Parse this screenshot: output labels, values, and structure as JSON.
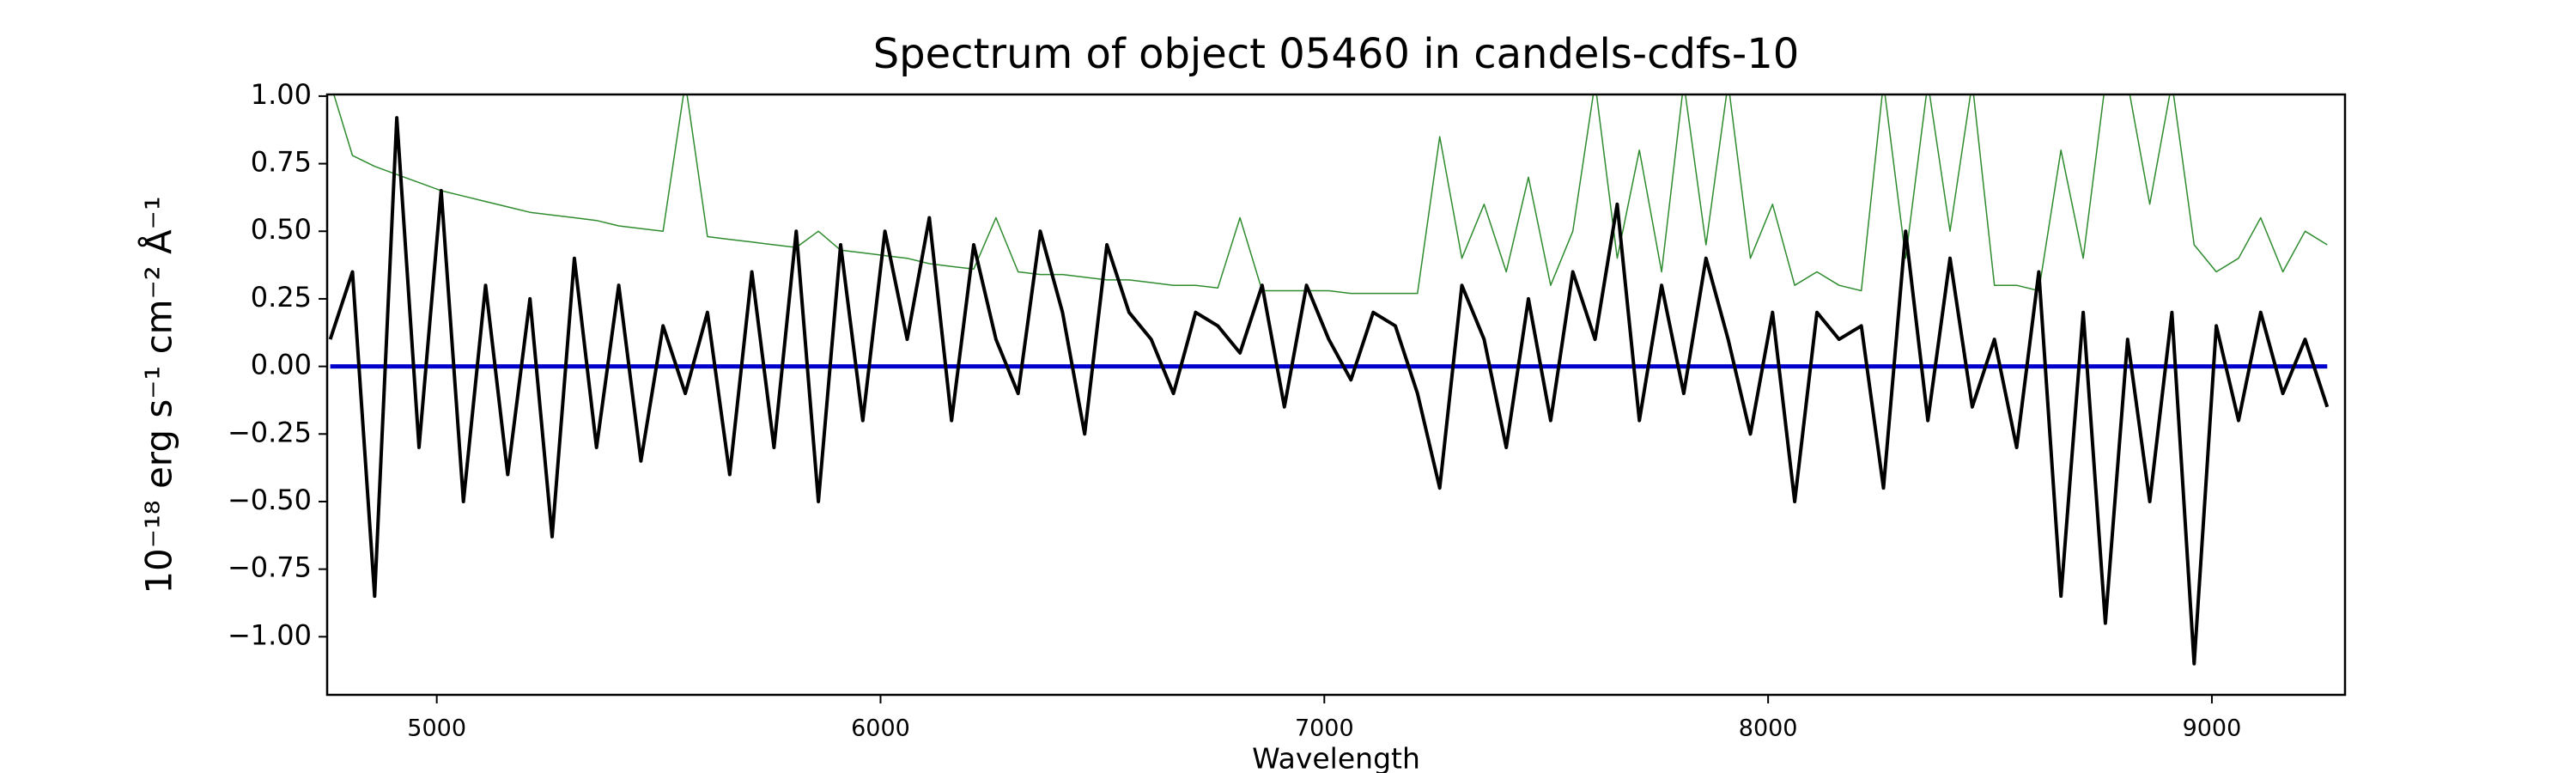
{
  "chart_data": {
    "type": "line",
    "title": "Spectrum of object 05460 in candels-cdfs-10",
    "xlabel": "Wavelength",
    "ylabel": "10⁻¹⁸ erg s⁻¹ cm⁻² Å⁻¹",
    "x": [
      4760,
      4810,
      4860,
      4910,
      4960,
      5010,
      5060,
      5110,
      5160,
      5210,
      5260,
      5310,
      5360,
      5410,
      5460,
      5510,
      5560,
      5610,
      5660,
      5710,
      5760,
      5810,
      5860,
      5910,
      5960,
      6010,
      6060,
      6110,
      6160,
      6210,
      6260,
      6310,
      6360,
      6410,
      6460,
      6510,
      6560,
      6610,
      6660,
      6710,
      6760,
      6810,
      6860,
      6910,
      6960,
      7010,
      7060,
      7110,
      7160,
      7210,
      7260,
      7310,
      7360,
      7410,
      7460,
      7510,
      7560,
      7610,
      7660,
      7710,
      7760,
      7810,
      7860,
      7910,
      7960,
      8010,
      8060,
      8110,
      8160,
      8210,
      8260,
      8310,
      8360,
      8410,
      8460,
      8510,
      8560,
      8610,
      8660,
      8710,
      8760,
      8810,
      8860,
      8910,
      8960,
      9010,
      9060,
      9110,
      9160,
      9210,
      9260
    ],
    "series": [
      {
        "color": "#2e8b2e",
        "width": 1.5,
        "values": [
          1.05,
          0.78,
          0.74,
          0.71,
          0.68,
          0.65,
          0.63,
          0.61,
          0.59,
          0.57,
          0.56,
          0.55,
          0.54,
          0.52,
          0.51,
          0.5,
          1.05,
          0.48,
          0.47,
          0.46,
          0.45,
          0.44,
          0.5,
          0.43,
          0.42,
          0.41,
          0.4,
          0.38,
          0.37,
          0.36,
          0.55,
          0.35,
          0.34,
          0.34,
          0.33,
          0.32,
          0.32,
          0.31,
          0.3,
          0.3,
          0.29,
          0.55,
          0.28,
          0.28,
          0.28,
          0.28,
          0.27,
          0.27,
          0.27,
          0.27,
          0.85,
          0.4,
          0.6,
          0.35,
          0.7,
          0.3,
          0.5,
          1.05,
          0.4,
          0.8,
          0.35,
          1.05,
          0.45,
          1.05,
          0.4,
          0.6,
          0.3,
          0.35,
          0.3,
          0.28,
          1.05,
          0.4,
          1.05,
          0.5,
          1.05,
          0.3,
          0.3,
          0.28,
          0.8,
          0.4,
          1.05,
          1.05,
          0.6,
          1.05,
          0.45,
          0.35,
          0.4,
          0.55,
          0.35,
          0.5,
          0.45
        ]
      },
      {
        "color": "#0000cc",
        "width": 5,
        "values": [
          0,
          0,
          0,
          0,
          0,
          0,
          0,
          0,
          0,
          0,
          0,
          0,
          0,
          0,
          0,
          0,
          0,
          0,
          0,
          0,
          0,
          0,
          0,
          0,
          0,
          0,
          0,
          0,
          0,
          0,
          0,
          0,
          0,
          0,
          0,
          0,
          0,
          0,
          0,
          0,
          0,
          0,
          0,
          0,
          0,
          0,
          0,
          0,
          0,
          0,
          0,
          0,
          0,
          0,
          0,
          0,
          0,
          0,
          0,
          0,
          0,
          0,
          0,
          0,
          0,
          0,
          0,
          0,
          0,
          0,
          0,
          0,
          0,
          0,
          0,
          0,
          0,
          0,
          0,
          0,
          0,
          0,
          0,
          0,
          0,
          0,
          0,
          0,
          0,
          0,
          0
        ]
      },
      {
        "color": "#000000",
        "width": 4,
        "values": [
          0.1,
          0.35,
          -0.85,
          0.92,
          -0.3,
          0.65,
          -0.5,
          0.3,
          -0.4,
          0.25,
          -0.63,
          0.4,
          -0.3,
          0.3,
          -0.35,
          0.15,
          -0.1,
          0.2,
          -0.4,
          0.35,
          -0.3,
          0.5,
          -0.5,
          0.45,
          -0.2,
          0.5,
          0.1,
          0.55,
          -0.2,
          0.45,
          0.1,
          -0.1,
          0.5,
          0.2,
          -0.25,
          0.45,
          0.2,
          0.1,
          -0.1,
          0.2,
          0.15,
          0.05,
          0.3,
          -0.15,
          0.3,
          0.1,
          -0.05,
          0.2,
          0.15,
          -0.1,
          -0.45,
          0.3,
          0.1,
          -0.3,
          0.25,
          -0.2,
          0.35,
          0.1,
          0.6,
          -0.2,
          0.3,
          -0.1,
          0.4,
          0.1,
          -0.25,
          0.2,
          -0.5,
          0.2,
          0.1,
          0.15,
          -0.45,
          0.5,
          -0.2,
          0.4,
          -0.15,
          0.1,
          -0.3,
          0.35,
          -0.85,
          0.2,
          -0.95,
          0.1,
          -0.5,
          0.2,
          -1.1,
          0.15,
          -0.2,
          0.2,
          -0.1,
          0.1,
          -0.15
        ]
      }
    ],
    "xlim": [
      4753,
      9300
    ],
    "ylim": [
      -1.215,
      1.006
    ],
    "xticks": [
      5000,
      6000,
      7000,
      8000,
      9000
    ],
    "yticks": [
      {
        "value": -1,
        "label": "−1.00"
      },
      {
        "value": -0.75,
        "label": "−0.75"
      },
      {
        "value": -0.5,
        "label": "−0.50"
      },
      {
        "value": -0.25,
        "label": "−0.25"
      },
      {
        "value": 0,
        "label": "0.00"
      },
      {
        "value": 0.25,
        "label": "0.25"
      },
      {
        "value": 0.5,
        "label": "0.50"
      },
      {
        "value": 0.75,
        "label": "0.75"
      },
      {
        "value": 1,
        "label": "1.00"
      }
    ],
    "grid": false
  }
}
